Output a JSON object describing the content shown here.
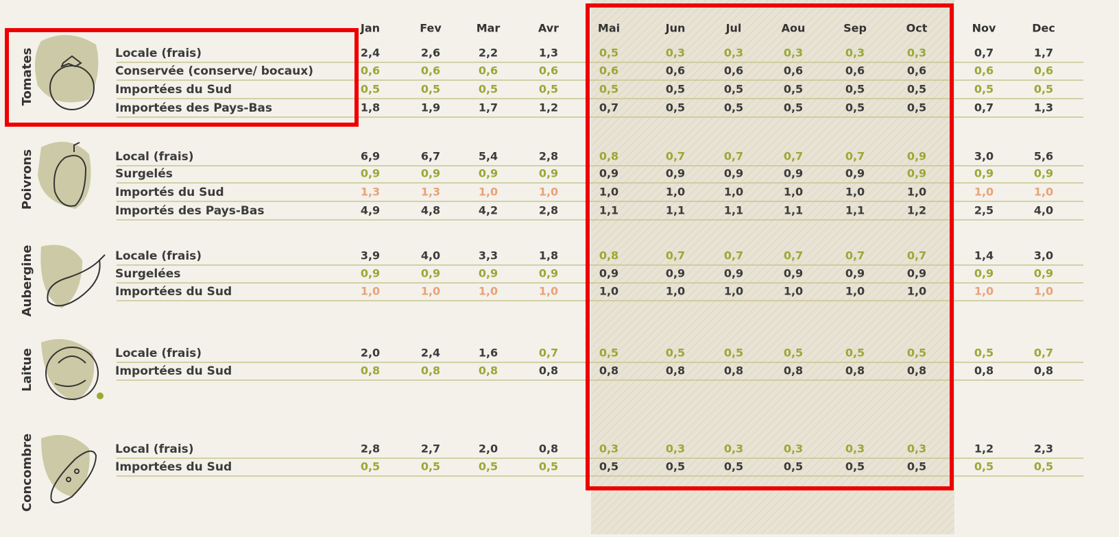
{
  "months": [
    "Jan",
    "Fev",
    "Mar",
    "Avr",
    "Mai",
    "Jun",
    "Jul",
    "Aou",
    "Sep",
    "Oct",
    "Nov",
    "Dec"
  ],
  "palette": {
    "g": "#9aa836",
    "o": "#e8a27a",
    "d": "#3b3b3b"
  },
  "groups": [
    {
      "name": "Tomates",
      "rows": [
        {
          "label": "Locale (frais)",
          "values": [
            "2,4",
            "2,6",
            "2,2",
            "1,3",
            "0,5",
            "0,3",
            "0,3",
            "0,3",
            "0,3",
            "0,3",
            "0,7",
            "1,7"
          ],
          "tones": [
            "d",
            "d",
            "d",
            "d",
            "g",
            "g",
            "g",
            "g",
            "g",
            "g",
            "d",
            "d"
          ]
        },
        {
          "label": "Conservée (conserve/ bocaux)",
          "values": [
            "0,6",
            "0,6",
            "0,6",
            "0,6",
            "0,6",
            "0,6",
            "0,6",
            "0,6",
            "0,6",
            "0,6",
            "0,6",
            "0,6"
          ],
          "tones": [
            "g",
            "g",
            "g",
            "g",
            "g",
            "d",
            "d",
            "d",
            "d",
            "d",
            "g",
            "g"
          ]
        },
        {
          "label": "Importées du Sud",
          "values": [
            "0,5",
            "0,5",
            "0,5",
            "0,5",
            "0,5",
            "0,5",
            "0,5",
            "0,5",
            "0,5",
            "0,5",
            "0,5",
            "0,5"
          ],
          "tones": [
            "g",
            "g",
            "g",
            "g",
            "g",
            "d",
            "d",
            "d",
            "d",
            "d",
            "g",
            "g"
          ]
        },
        {
          "label": "Importées des Pays-Bas",
          "values": [
            "1,8",
            "1,9",
            "1,7",
            "1,2",
            "0,7",
            "0,5",
            "0,5",
            "0,5",
            "0,5",
            "0,5",
            "0,7",
            "1,3"
          ],
          "tones": [
            "d",
            "d",
            "d",
            "d",
            "d",
            "d",
            "d",
            "d",
            "d",
            "d",
            "d",
            "d"
          ]
        }
      ]
    },
    {
      "name": "Poivrons",
      "rows": [
        {
          "label": "Local (frais)",
          "values": [
            "6,9",
            "6,7",
            "5,4",
            "2,8",
            "0,8",
            "0,7",
            "0,7",
            "0,7",
            "0,7",
            "0,9",
            "3,0",
            "5,6"
          ],
          "tones": [
            "d",
            "d",
            "d",
            "d",
            "g",
            "g",
            "g",
            "g",
            "g",
            "g",
            "d",
            "d"
          ]
        },
        {
          "label": "Surgelés",
          "values": [
            "0,9",
            "0,9",
            "0,9",
            "0,9",
            "0,9",
            "0,9",
            "0,9",
            "0,9",
            "0,9",
            "0,9",
            "0,9",
            "0,9"
          ],
          "tones": [
            "g",
            "g",
            "g",
            "g",
            "d",
            "d",
            "d",
            "d",
            "d",
            "g",
            "g",
            "g"
          ]
        },
        {
          "label": "Importés du Sud",
          "values": [
            "1,3",
            "1,3",
            "1,0",
            "1,0",
            "1,0",
            "1,0",
            "1,0",
            "1,0",
            "1,0",
            "1,0",
            "1,0",
            "1,0"
          ],
          "tones": [
            "o",
            "o",
            "o",
            "o",
            "d",
            "d",
            "d",
            "d",
            "d",
            "d",
            "o",
            "o"
          ]
        },
        {
          "label": "Importés des Pays-Bas",
          "values": [
            "4,9",
            "4,8",
            "4,2",
            "2,8",
            "1,1",
            "1,1",
            "1,1",
            "1,1",
            "1,1",
            "1,2",
            "2,5",
            "4,0"
          ],
          "tones": [
            "d",
            "d",
            "d",
            "d",
            "d",
            "d",
            "d",
            "d",
            "d",
            "d",
            "d",
            "d"
          ]
        }
      ]
    },
    {
      "name": "Aubergine",
      "rows": [
        {
          "label": "Locale (frais)",
          "values": [
            "3,9",
            "4,0",
            "3,3",
            "1,8",
            "0,8",
            "0,7",
            "0,7",
            "0,7",
            "0,7",
            "0,7",
            "1,4",
            "3,0"
          ],
          "tones": [
            "d",
            "d",
            "d",
            "d",
            "g",
            "g",
            "g",
            "g",
            "g",
            "g",
            "d",
            "d"
          ]
        },
        {
          "label": "Surgelées",
          "values": [
            "0,9",
            "0,9",
            "0,9",
            "0,9",
            "0,9",
            "0,9",
            "0,9",
            "0,9",
            "0,9",
            "0,9",
            "0,9",
            "0,9"
          ],
          "tones": [
            "g",
            "g",
            "g",
            "g",
            "d",
            "d",
            "d",
            "d",
            "d",
            "d",
            "g",
            "g"
          ]
        },
        {
          "label": "Importées du Sud",
          "values": [
            "1,0",
            "1,0",
            "1,0",
            "1,0",
            "1,0",
            "1,0",
            "1,0",
            "1,0",
            "1,0",
            "1,0",
            "1,0",
            "1,0"
          ],
          "tones": [
            "o",
            "o",
            "o",
            "o",
            "d",
            "d",
            "d",
            "d",
            "d",
            "d",
            "o",
            "o"
          ]
        }
      ]
    },
    {
      "name": "Laitue",
      "rows": [
        {
          "label": "Locale (frais)",
          "values": [
            "2,0",
            "2,4",
            "1,6",
            "0,7",
            "0,5",
            "0,5",
            "0,5",
            "0,5",
            "0,5",
            "0,5",
            "0,5",
            "0,7"
          ],
          "tones": [
            "d",
            "d",
            "d",
            "g",
            "g",
            "g",
            "g",
            "g",
            "g",
            "g",
            "g",
            "g"
          ]
        },
        {
          "label": "Importées du Sud",
          "values": [
            "0,8",
            "0,8",
            "0,8",
            "0,8",
            "0,8",
            "0,8",
            "0,8",
            "0,8",
            "0,8",
            "0,8",
            "0,8",
            "0,8"
          ],
          "tones": [
            "g",
            "g",
            "g",
            "d",
            "d",
            "d",
            "d",
            "d",
            "d",
            "d",
            "d",
            "d"
          ]
        }
      ]
    },
    {
      "name": "Concombre",
      "rows": [
        {
          "label": "Local (frais)",
          "values": [
            "2,8",
            "2,7",
            "2,0",
            "0,8",
            "0,3",
            "0,3",
            "0,3",
            "0,3",
            "0,3",
            "0,3",
            "1,2",
            "2,3"
          ],
          "tones": [
            "d",
            "d",
            "d",
            "d",
            "g",
            "g",
            "g",
            "g",
            "g",
            "g",
            "d",
            "d"
          ]
        },
        {
          "label": "Importées du Sud",
          "values": [
            "0,5",
            "0,5",
            "0,5",
            "0,5",
            "0,5",
            "0,5",
            "0,5",
            "0,5",
            "0,5",
            "0,5",
            "0,5",
            "0,5"
          ],
          "tones": [
            "g",
            "g",
            "g",
            "g",
            "d",
            "d",
            "d",
            "d",
            "d",
            "d",
            "g",
            "g"
          ]
        }
      ]
    }
  ]
}
